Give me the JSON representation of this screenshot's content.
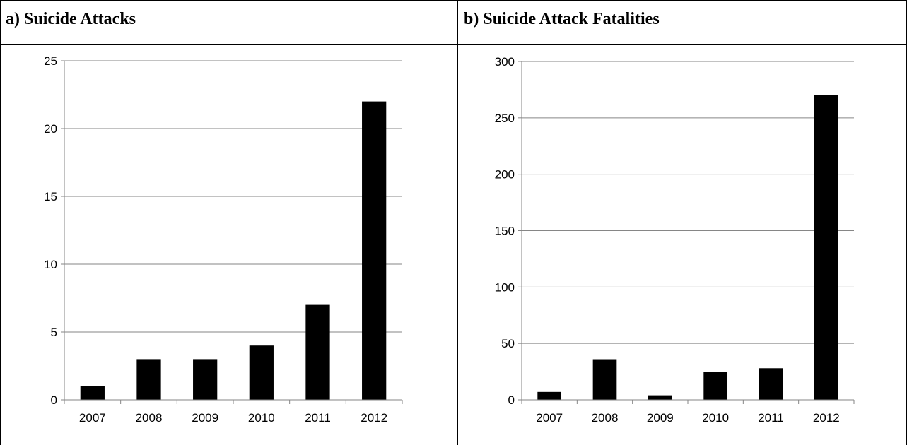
{
  "panels": [
    {
      "title": "a) Suicide Attacks"
    },
    {
      "title": "b) Suicide Attack Fatalities"
    }
  ],
  "chart_data": [
    {
      "type": "bar",
      "title": "a) Suicide Attacks",
      "categories": [
        "2007",
        "2008",
        "2009",
        "2010",
        "2011",
        "2012"
      ],
      "values": [
        1,
        3,
        3,
        4,
        7,
        22
      ],
      "ylim": [
        0,
        25
      ],
      "yticks": [
        "0",
        "5",
        "10",
        "15",
        "20",
        "25"
      ],
      "grid": true,
      "bar_color": "#000000",
      "grid_color": "#868686"
    },
    {
      "type": "bar",
      "title": "b) Suicide Attack Fatalities",
      "categories": [
        "2007",
        "2008",
        "2009",
        "2010",
        "2011",
        "2012"
      ],
      "values": [
        7,
        36,
        4,
        25,
        28,
        270
      ],
      "ylim": [
        0,
        300
      ],
      "yticks": [
        "0",
        "50",
        "100",
        "150",
        "200",
        "250",
        "300"
      ],
      "grid": true,
      "bar_color": "#000000",
      "grid_color": "#868686"
    }
  ]
}
